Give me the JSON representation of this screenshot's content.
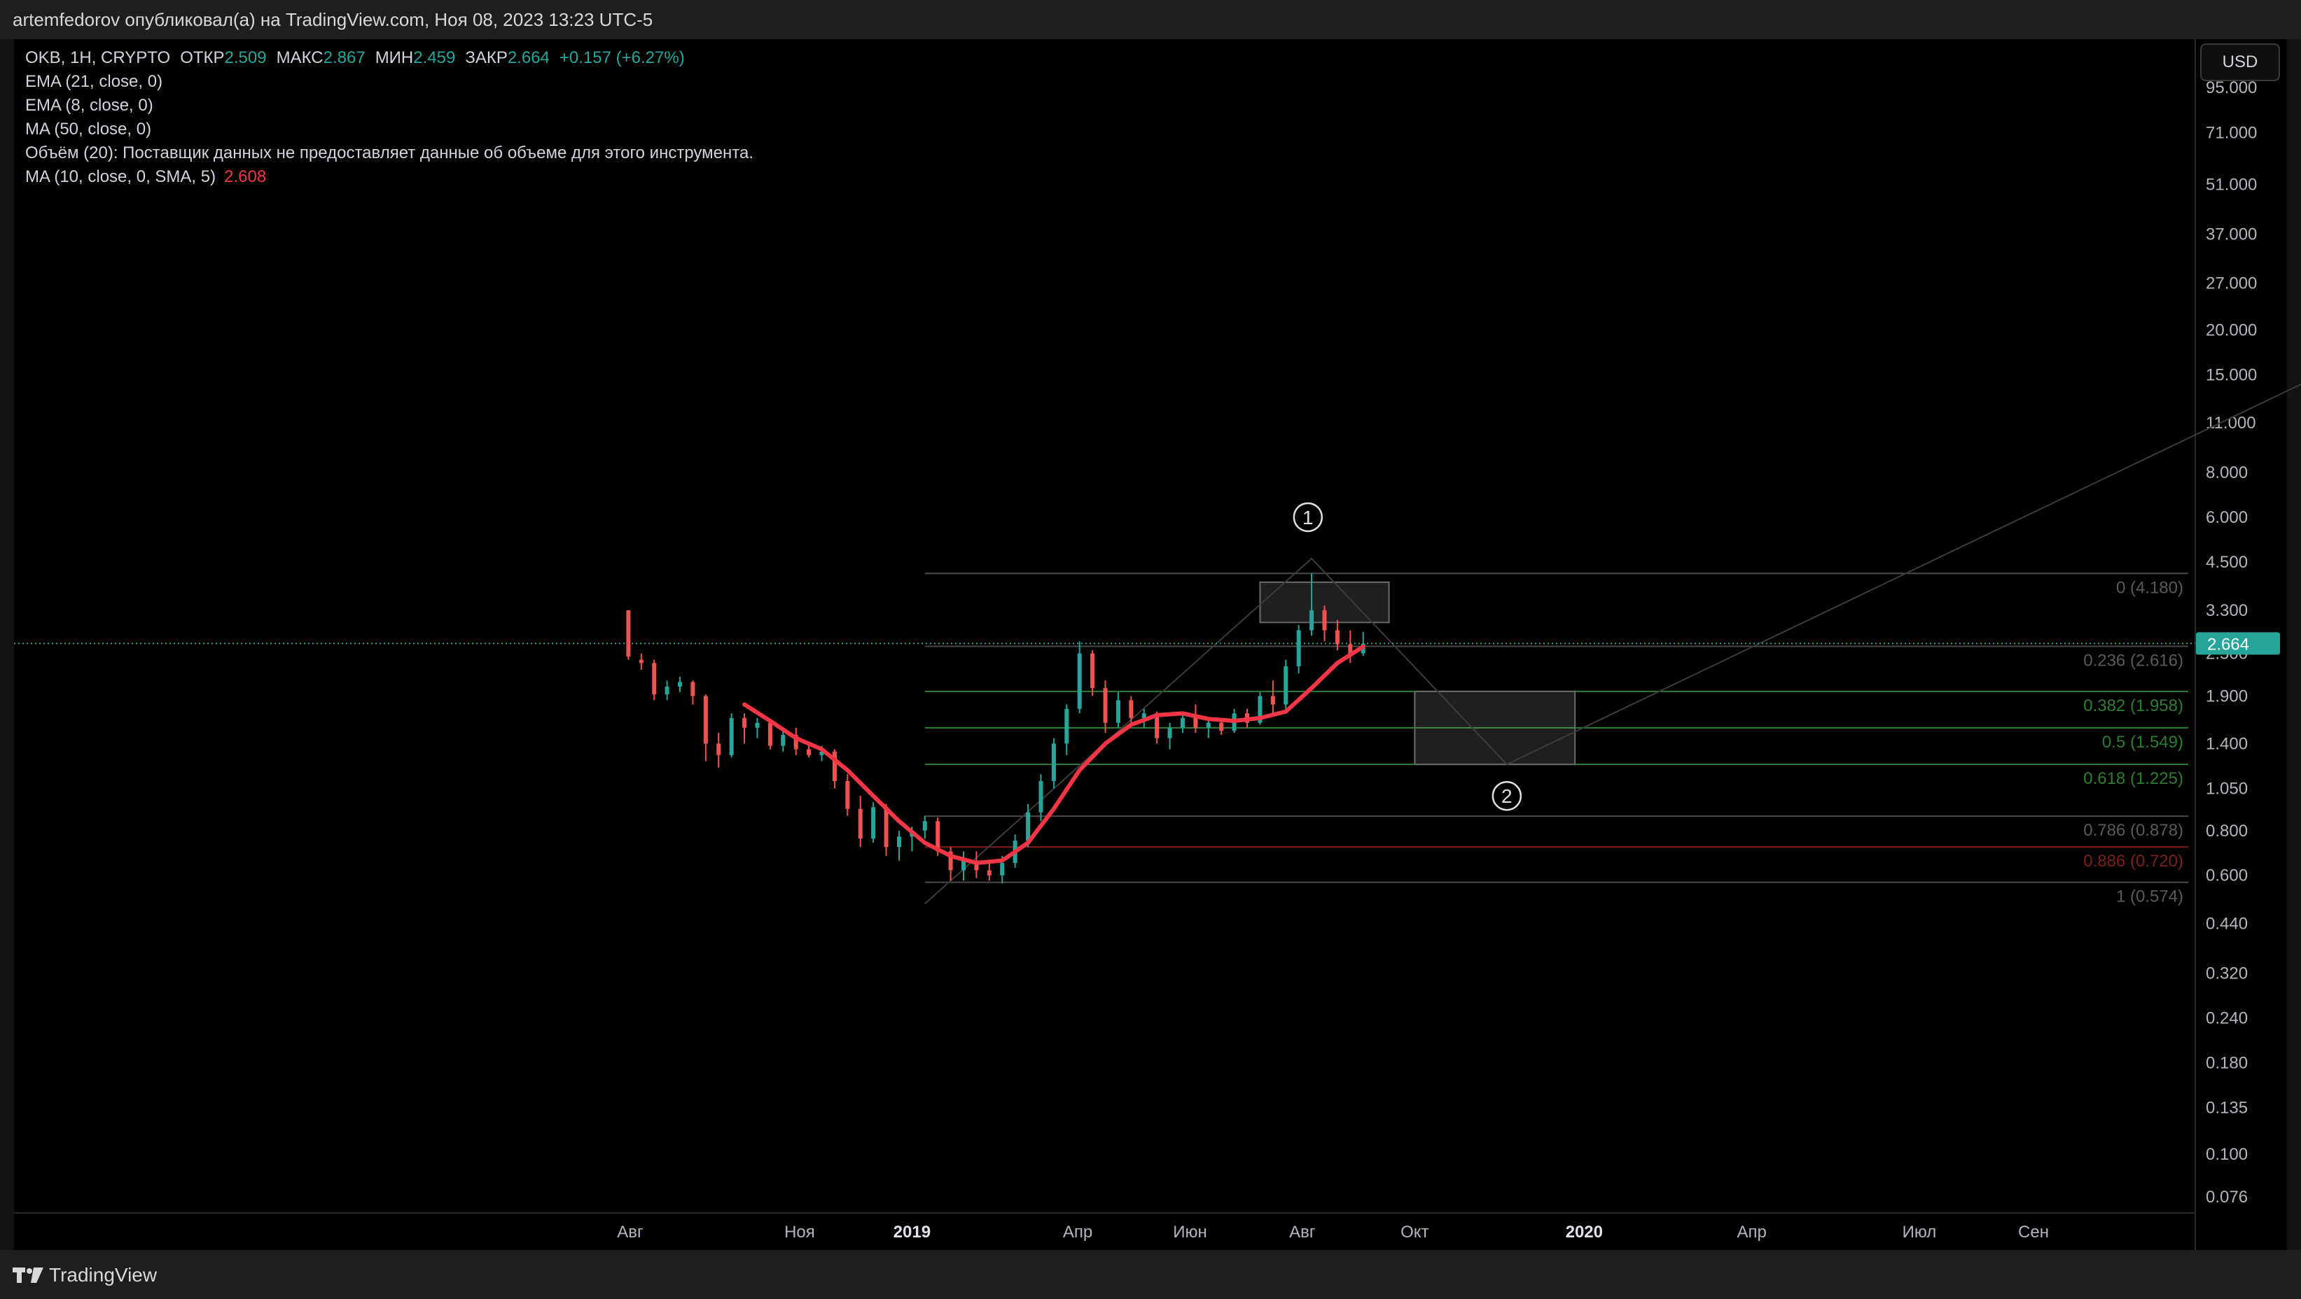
{
  "header": {
    "publisher_line": "artemfedorov опубликовал(а) на TradingView.com, Ноя 08, 2023 13:23 UTC-5"
  },
  "legend": {
    "symbol": "OKB, 1H, CRYPTO",
    "open_label": "ОТКР",
    "open_value": "2.509",
    "high_label": "МАКС",
    "high_value": "2.867",
    "low_label": "МИН",
    "low_value": "2.459",
    "close_label": "ЗАКР",
    "close_value": "2.664",
    "change": "+0.157 (+6.27%)",
    "ema21": "EMA (21, close, 0)",
    "ema8": "EMA (8, close, 0)",
    "ma50": "MA (50, close, 0)",
    "volume_note": "Объём (20): Поставщик данных не предоставляет данные об объеме для этого инструмента.",
    "ma10": "MA (10, close, 0, SMA, 5)",
    "ma10_value": "2.608"
  },
  "currency_button": "USD",
  "brand": "TradingView",
  "colors": {
    "up": "#26a69a",
    "down": "#ef5350",
    "ma": "#f23645",
    "fib_green": "#2e7d32",
    "fib_gray": "#555555",
    "fib_red": "#7a1f1f",
    "price_badge": "#26a69a"
  },
  "chart_data": {
    "type": "candlestick",
    "title": "OKB, 1H, CRYPTO",
    "y_scale": "log",
    "ylim": [
      0.07,
      120
    ],
    "y_ticks": [
      "95.000",
      "71.000",
      "51.000",
      "37.000",
      "27.000",
      "20.000",
      "15.000",
      "11.000",
      "8.000",
      "6.000",
      "4.500",
      "3.300",
      "2.500",
      "1.900",
      "1.400",
      "1.050",
      "0.800",
      "0.600",
      "0.440",
      "0.320",
      "0.240",
      "0.180",
      "0.135",
      "0.100",
      "0.076"
    ],
    "x_ticks": [
      {
        "label": "Авг",
        "date": "2018-08-01",
        "bold": false
      },
      {
        "label": "Ноя",
        "date": "2018-11-01",
        "bold": false
      },
      {
        "label": "2019",
        "date": "2019-01-01",
        "bold": true
      },
      {
        "label": "Апр",
        "date": "2019-04-01",
        "bold": false
      },
      {
        "label": "Июн",
        "date": "2019-06-01",
        "bold": false
      },
      {
        "label": "Авг",
        "date": "2019-08-01",
        "bold": false
      },
      {
        "label": "Окт",
        "date": "2019-10-01",
        "bold": false
      },
      {
        "label": "2020",
        "date": "2020-01-01",
        "bold": true
      },
      {
        "label": "Апр",
        "date": "2020-04-01",
        "bold": false
      },
      {
        "label": "Июл",
        "date": "2020-07-01",
        "bold": false
      },
      {
        "label": "Сен",
        "date": "2020-09-01",
        "bold": false
      }
    ],
    "last_price": "2.664",
    "candles": [
      {
        "d": "2018-07-31",
        "o": 3.3,
        "h": 3.3,
        "l": 2.4,
        "c": 2.45
      },
      {
        "d": "2018-08-07",
        "o": 2.4,
        "h": 2.5,
        "l": 2.25,
        "c": 2.35
      },
      {
        "d": "2018-08-14",
        "o": 2.35,
        "h": 2.4,
        "l": 1.85,
        "c": 1.92
      },
      {
        "d": "2018-08-21",
        "o": 1.92,
        "h": 2.1,
        "l": 1.85,
        "c": 2.02
      },
      {
        "d": "2018-08-28",
        "o": 2.02,
        "h": 2.15,
        "l": 1.95,
        "c": 2.08
      },
      {
        "d": "2018-09-04",
        "o": 2.08,
        "h": 2.1,
        "l": 1.8,
        "c": 1.9
      },
      {
        "d": "2018-09-11",
        "o": 1.9,
        "h": 1.92,
        "l": 1.25,
        "c": 1.4
      },
      {
        "d": "2018-09-18",
        "o": 1.4,
        "h": 1.5,
        "l": 1.2,
        "c": 1.3
      },
      {
        "d": "2018-09-25",
        "o": 1.3,
        "h": 1.7,
        "l": 1.28,
        "c": 1.65
      },
      {
        "d": "2018-10-02",
        "o": 1.65,
        "h": 1.7,
        "l": 1.4,
        "c": 1.55
      },
      {
        "d": "2018-10-09",
        "o": 1.55,
        "h": 1.65,
        "l": 1.45,
        "c": 1.6
      },
      {
        "d": "2018-10-16",
        "o": 1.6,
        "h": 1.62,
        "l": 1.35,
        "c": 1.38
      },
      {
        "d": "2018-10-23",
        "o": 1.38,
        "h": 1.52,
        "l": 1.33,
        "c": 1.48
      },
      {
        "d": "2018-10-30",
        "o": 1.48,
        "h": 1.55,
        "l": 1.3,
        "c": 1.35
      },
      {
        "d": "2018-11-06",
        "o": 1.35,
        "h": 1.4,
        "l": 1.28,
        "c": 1.3
      },
      {
        "d": "2018-11-13",
        "o": 1.3,
        "h": 1.38,
        "l": 1.25,
        "c": 1.33
      },
      {
        "d": "2018-11-20",
        "o": 1.33,
        "h": 1.35,
        "l": 1.05,
        "c": 1.1
      },
      {
        "d": "2018-11-27",
        "o": 1.1,
        "h": 1.15,
        "l": 0.88,
        "c": 0.92
      },
      {
        "d": "2018-12-04",
        "o": 0.92,
        "h": 1.0,
        "l": 0.72,
        "c": 0.76
      },
      {
        "d": "2018-12-11",
        "o": 0.76,
        "h": 0.96,
        "l": 0.74,
        "c": 0.93
      },
      {
        "d": "2018-12-18",
        "o": 0.93,
        "h": 0.95,
        "l": 0.68,
        "c": 0.72
      },
      {
        "d": "2018-12-25",
        "o": 0.72,
        "h": 0.8,
        "l": 0.66,
        "c": 0.77
      },
      {
        "d": "2019-01-01",
        "o": 0.77,
        "h": 0.82,
        "l": 0.7,
        "c": 0.8
      },
      {
        "d": "2019-01-08",
        "o": 0.8,
        "h": 0.88,
        "l": 0.76,
        "c": 0.85
      },
      {
        "d": "2019-01-15",
        "o": 0.85,
        "h": 0.87,
        "l": 0.68,
        "c": 0.7
      },
      {
        "d": "2019-01-22",
        "o": 0.7,
        "h": 0.72,
        "l": 0.58,
        "c": 0.62
      },
      {
        "d": "2019-01-29",
        "o": 0.62,
        "h": 0.7,
        "l": 0.58,
        "c": 0.66
      },
      {
        "d": "2019-02-05",
        "o": 0.66,
        "h": 0.7,
        "l": 0.59,
        "c": 0.62
      },
      {
        "d": "2019-02-12",
        "o": 0.62,
        "h": 0.66,
        "l": 0.58,
        "c": 0.6
      },
      {
        "d": "2019-02-19",
        "o": 0.6,
        "h": 0.68,
        "l": 0.57,
        "c": 0.65
      },
      {
        "d": "2019-02-26",
        "o": 0.65,
        "h": 0.78,
        "l": 0.63,
        "c": 0.75
      },
      {
        "d": "2019-03-05",
        "o": 0.75,
        "h": 0.95,
        "l": 0.72,
        "c": 0.9
      },
      {
        "d": "2019-03-12",
        "o": 0.9,
        "h": 1.15,
        "l": 0.85,
        "c": 1.1
      },
      {
        "d": "2019-03-19",
        "o": 1.1,
        "h": 1.45,
        "l": 1.05,
        "c": 1.4
      },
      {
        "d": "2019-03-26",
        "o": 1.4,
        "h": 1.8,
        "l": 1.3,
        "c": 1.75
      },
      {
        "d": "2019-04-02",
        "o": 1.75,
        "h": 2.7,
        "l": 1.7,
        "c": 2.5
      },
      {
        "d": "2019-04-09",
        "o": 2.5,
        "h": 2.55,
        "l": 1.9,
        "c": 2.0
      },
      {
        "d": "2019-04-16",
        "o": 2.0,
        "h": 2.1,
        "l": 1.5,
        "c": 1.6
      },
      {
        "d": "2019-04-23",
        "o": 1.6,
        "h": 1.95,
        "l": 1.55,
        "c": 1.85
      },
      {
        "d": "2019-04-30",
        "o": 1.85,
        "h": 1.9,
        "l": 1.6,
        "c": 1.65
      },
      {
        "d": "2019-05-07",
        "o": 1.65,
        "h": 1.75,
        "l": 1.55,
        "c": 1.7
      },
      {
        "d": "2019-05-14",
        "o": 1.7,
        "h": 1.72,
        "l": 1.4,
        "c": 1.45
      },
      {
        "d": "2019-05-21",
        "o": 1.45,
        "h": 1.6,
        "l": 1.35,
        "c": 1.55
      },
      {
        "d": "2019-05-28",
        "o": 1.55,
        "h": 1.7,
        "l": 1.5,
        "c": 1.65
      },
      {
        "d": "2019-06-04",
        "o": 1.65,
        "h": 1.8,
        "l": 1.5,
        "c": 1.55
      },
      {
        "d": "2019-06-11",
        "o": 1.55,
        "h": 1.65,
        "l": 1.45,
        "c": 1.6
      },
      {
        "d": "2019-06-18",
        "o": 1.6,
        "h": 1.65,
        "l": 1.48,
        "c": 1.52
      },
      {
        "d": "2019-06-25",
        "o": 1.52,
        "h": 1.75,
        "l": 1.5,
        "c": 1.7
      },
      {
        "d": "2019-07-02",
        "o": 1.7,
        "h": 1.75,
        "l": 1.55,
        "c": 1.6
      },
      {
        "d": "2019-07-09",
        "o": 1.6,
        "h": 1.95,
        "l": 1.58,
        "c": 1.9
      },
      {
        "d": "2019-07-16",
        "o": 1.9,
        "h": 2.1,
        "l": 1.7,
        "c": 1.8
      },
      {
        "d": "2019-07-23",
        "o": 1.8,
        "h": 2.4,
        "l": 1.75,
        "c": 2.3
      },
      {
        "d": "2019-07-30",
        "o": 2.3,
        "h": 3.0,
        "l": 2.2,
        "c": 2.9
      },
      {
        "d": "2019-08-06",
        "o": 2.9,
        "h": 4.18,
        "l": 2.8,
        "c": 3.3
      },
      {
        "d": "2019-08-13",
        "o": 3.3,
        "h": 3.4,
        "l": 2.7,
        "c": 2.9
      },
      {
        "d": "2019-08-20",
        "o": 2.9,
        "h": 3.1,
        "l": 2.55,
        "c": 2.65
      },
      {
        "d": "2019-08-27",
        "o": 2.65,
        "h": 2.9,
        "l": 2.35,
        "c": 2.5
      },
      {
        "d": "2019-09-03",
        "o": 2.5,
        "h": 2.87,
        "l": 2.46,
        "c": 2.66
      }
    ],
    "ma_line": [
      {
        "d": "2018-10-02",
        "v": 1.8
      },
      {
        "d": "2018-10-16",
        "v": 1.62
      },
      {
        "d": "2018-10-30",
        "v": 1.45
      },
      {
        "d": "2018-11-13",
        "v": 1.35
      },
      {
        "d": "2018-11-27",
        "v": 1.18
      },
      {
        "d": "2018-12-11",
        "v": 1.0
      },
      {
        "d": "2018-12-25",
        "v": 0.85
      },
      {
        "d": "2019-01-08",
        "v": 0.74
      },
      {
        "d": "2019-01-22",
        "v": 0.68
      },
      {
        "d": "2019-02-05",
        "v": 0.65
      },
      {
        "d": "2019-02-19",
        "v": 0.66
      },
      {
        "d": "2019-03-05",
        "v": 0.74
      },
      {
        "d": "2019-03-19",
        "v": 0.92
      },
      {
        "d": "2019-04-02",
        "v": 1.18
      },
      {
        "d": "2019-04-16",
        "v": 1.4
      },
      {
        "d": "2019-04-30",
        "v": 1.58
      },
      {
        "d": "2019-05-14",
        "v": 1.68
      },
      {
        "d": "2019-05-28",
        "v": 1.7
      },
      {
        "d": "2019-06-11",
        "v": 1.64
      },
      {
        "d": "2019-06-25",
        "v": 1.62
      },
      {
        "d": "2019-07-09",
        "v": 1.65
      },
      {
        "d": "2019-07-23",
        "v": 1.72
      },
      {
        "d": "2019-08-06",
        "v": 2.0
      },
      {
        "d": "2019-08-20",
        "v": 2.35
      },
      {
        "d": "2019-09-03",
        "v": 2.61
      }
    ],
    "fibonacci": {
      "start": "2019-01-08",
      "end": "2021-02-10",
      "levels": [
        {
          "label": "0 (4.180)",
          "price": 4.18,
          "color": "#4a4a4a"
        },
        {
          "label": "0.236 (2.616)",
          "price": 2.616,
          "color": "#4a4a4a"
        },
        {
          "label": "0.382 (1.958)",
          "price": 1.958,
          "color": "#2e7d32"
        },
        {
          "label": "0.5 (1.549)",
          "price": 1.549,
          "color": "#2e7d32"
        },
        {
          "label": "0.618 (1.225)",
          "price": 1.225,
          "color": "#2e7d32"
        },
        {
          "label": "0.786 (0.878)",
          "price": 0.878,
          "color": "#4a4a4a"
        },
        {
          "label": "0.886 (0.720)",
          "price": 0.72,
          "color": "#7a1f1f"
        },
        {
          "label": "1 (0.574)",
          "price": 0.574,
          "color": "#4a4a4a"
        }
      ]
    },
    "annotations": [
      {
        "label": "1",
        "d": "2019-08-04",
        "price": 6.0
      },
      {
        "label": "2",
        "d": "2019-11-20",
        "price": 1.0
      }
    ],
    "zones": [
      {
        "d0": "2019-07-09",
        "d1": "2019-09-17",
        "p0": 3.05,
        "p1": 3.95
      },
      {
        "d0": "2019-10-01",
        "d1": "2019-12-27",
        "p0": 1.225,
        "p1": 1.958
      }
    ],
    "wave_path": [
      {
        "d": "2019-01-08",
        "price": 0.5
      },
      {
        "d": "2019-08-06",
        "price": 4.6
      },
      {
        "d": "2019-11-20",
        "price": 1.225
      },
      {
        "d": "2021-02-10",
        "price": 15.5
      }
    ]
  }
}
